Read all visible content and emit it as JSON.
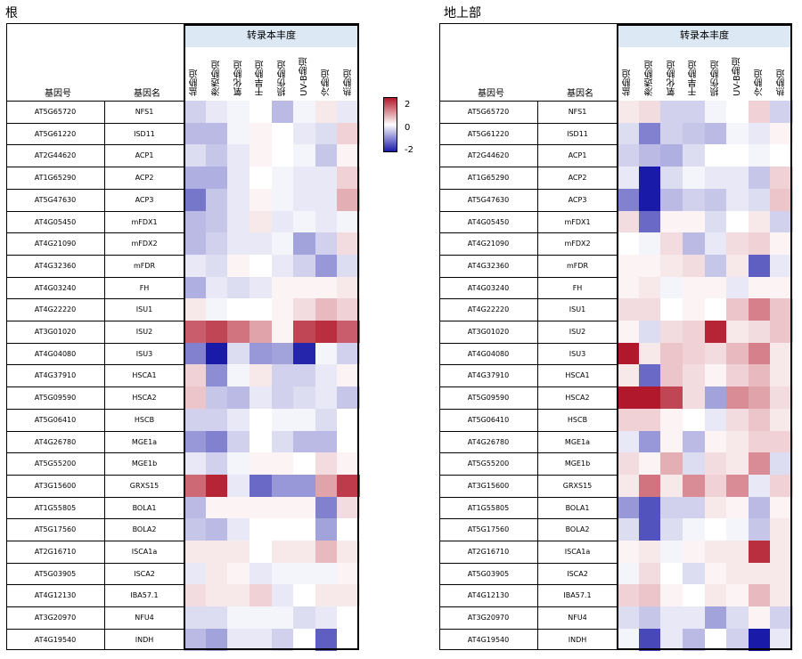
{
  "panels": [
    {
      "title": "根"
    },
    {
      "title": "地上部"
    }
  ],
  "header": {
    "group_label": "转录本丰度",
    "gene_id_label": "基因号",
    "gene_name_label": "基因名"
  },
  "conditions": [
    "盐胁迫",
    "渗透胁迫",
    "氧化胁迫",
    "干旱胁迫",
    "损伤胁迫",
    "UV-B胁迫",
    "冷胁迫",
    "热胁迫"
  ],
  "legend": {
    "max": "2",
    "mid": "0",
    "min": "-2"
  },
  "colors": {
    "high": "#b2182b",
    "mid": "#ffffff",
    "low": "#1a1aa8"
  },
  "chart_data": [
    {
      "type": "heatmap",
      "title": "根",
      "rows": [
        {
          "id": "AT5G65720",
          "name": "NFS1",
          "values": [
            -0.4,
            -0.2,
            -0.1,
            0.0,
            -0.6,
            -0.1,
            0.2,
            -0.2
          ]
        },
        {
          "id": "AT5G61220",
          "name": "ISD11",
          "values": [
            -0.6,
            -0.6,
            -0.1,
            0.1,
            0.0,
            -0.2,
            -0.3,
            0.4
          ]
        },
        {
          "id": "AT2G44620",
          "name": "ACP1",
          "values": [
            -0.3,
            -0.5,
            -0.2,
            0.1,
            0.0,
            -0.1,
            -0.5,
            0.1
          ]
        },
        {
          "id": "AT1G65290",
          "name": "ACP2",
          "values": [
            -0.7,
            -0.7,
            -0.2,
            0.0,
            -0.1,
            -0.2,
            -0.2,
            0.4
          ]
        },
        {
          "id": "AT5G47630",
          "name": "ACP3",
          "values": [
            -1.2,
            -0.5,
            -0.2,
            0.1,
            -0.1,
            -0.2,
            -0.2,
            0.7
          ]
        },
        {
          "id": "AT4G05450",
          "name": "mFDX1",
          "values": [
            -0.6,
            -0.5,
            -0.2,
            0.2,
            -0.2,
            -0.1,
            -0.2,
            -0.1
          ]
        },
        {
          "id": "AT4G21090",
          "name": "mFDX2",
          "values": [
            -0.6,
            -0.4,
            -0.2,
            -0.2,
            -0.1,
            -0.8,
            -0.4,
            0.3
          ]
        },
        {
          "id": "AT4G32360",
          "name": "mFDR",
          "values": [
            -0.2,
            -0.3,
            0.1,
            0.0,
            -0.2,
            -0.4,
            -0.9,
            -0.3
          ]
        },
        {
          "id": "AT4G03240",
          "name": "FH",
          "values": [
            -0.7,
            -0.2,
            -0.3,
            -0.2,
            0.1,
            0.1,
            0.1,
            0.2
          ]
        },
        {
          "id": "AT4G22220",
          "name": "ISU1",
          "values": [
            0.2,
            -0.1,
            0.0,
            0.0,
            0.1,
            0.3,
            0.6,
            0.4
          ]
        },
        {
          "id": "AT3G01020",
          "name": "ISU2",
          "values": [
            1.4,
            1.6,
            1.2,
            0.8,
            0.1,
            1.6,
            1.8,
            1.4
          ]
        },
        {
          "id": "AT4G04080",
          "name": "ISU3",
          "values": [
            -1.1,
            -2.0,
            -0.3,
            -0.9,
            -0.8,
            -1.9,
            -0.1,
            -0.4
          ]
        },
        {
          "id": "AT4G37910",
          "name": "HSCA1",
          "values": [
            0.4,
            -1.0,
            -0.1,
            0.2,
            -0.4,
            -0.4,
            -0.2,
            0.1
          ]
        },
        {
          "id": "AT5G09590",
          "name": "HSCA2",
          "values": [
            0.5,
            -0.5,
            -0.6,
            -0.2,
            -0.4,
            -0.3,
            -0.2,
            -0.5
          ]
        },
        {
          "id": "AT5G06410",
          "name": "HSCB",
          "values": [
            -0.4,
            -0.4,
            -0.2,
            0.0,
            -0.1,
            -0.1,
            -0.3,
            0.0
          ]
        },
        {
          "id": "AT4G26780",
          "name": "MGE1a",
          "values": [
            -0.9,
            -1.1,
            -0.4,
            0.0,
            -0.3,
            -0.6,
            -0.6,
            0.0
          ]
        },
        {
          "id": "AT5G55200",
          "name": "MGE1b",
          "values": [
            -0.2,
            -0.4,
            -0.1,
            0.1,
            0.1,
            0.0,
            0.3,
            0.1
          ]
        },
        {
          "id": "AT3G15600",
          "name": "GRXS15",
          "values": [
            1.3,
            1.9,
            -0.2,
            -1.3,
            -0.9,
            -0.9,
            0.8,
            1.7
          ]
        },
        {
          "id": "AT1G55805",
          "name": "BOLA1",
          "values": [
            -0.6,
            0.1,
            0.1,
            0.1,
            0.1,
            0.1,
            -1.1,
            0.3
          ]
        },
        {
          "id": "AT5G17560",
          "name": "BOLA2",
          "values": [
            -0.5,
            -0.6,
            -0.2,
            0.0,
            0.0,
            0.0,
            -0.8,
            0.0
          ]
        },
        {
          "id": "AT2G16710",
          "name": "ISCA1a",
          "values": [
            0.2,
            0.2,
            0.2,
            0.0,
            0.2,
            0.2,
            0.6,
            0.2
          ]
        },
        {
          "id": "AT5G03905",
          "name": "ISCA2",
          "values": [
            -0.2,
            0.2,
            0.1,
            -0.2,
            -0.1,
            -0.1,
            -0.1,
            0.1
          ]
        },
        {
          "id": "AT4G12130",
          "name": "IBA57.1",
          "values": [
            0.3,
            0.2,
            0.2,
            0.4,
            -0.2,
            0.0,
            0.2,
            0.2
          ]
        },
        {
          "id": "AT3G20970",
          "name": "NFU4",
          "values": [
            -0.3,
            -0.3,
            -0.1,
            -0.1,
            -0.1,
            -0.3,
            -0.2,
            0.0
          ]
        },
        {
          "id": "AT4G19540",
          "name": "INDH",
          "values": [
            -0.6,
            -0.8,
            -0.2,
            -0.2,
            -0.4,
            0.0,
            -1.4,
            0.0
          ]
        }
      ]
    },
    {
      "type": "heatmap",
      "title": "地上部",
      "rows": [
        {
          "id": "AT5G65720",
          "name": "NFS1",
          "values": [
            0.2,
            0.3,
            -0.4,
            -0.4,
            -0.1,
            0.0,
            0.4,
            -0.4
          ]
        },
        {
          "id": "AT5G61220",
          "name": "ISD11",
          "values": [
            -0.3,
            -1.1,
            -0.4,
            -0.5,
            -0.6,
            -0.1,
            -0.2,
            0.1
          ]
        },
        {
          "id": "AT2G44620",
          "name": "ACP1",
          "values": [
            -0.4,
            -0.6,
            -0.7,
            -0.3,
            0.0,
            0.0,
            -0.1,
            0.0
          ]
        },
        {
          "id": "AT1G65290",
          "name": "ACP2",
          "values": [
            -0.2,
            -2.0,
            -0.3,
            -0.1,
            -0.2,
            -0.2,
            -0.5,
            0.4
          ]
        },
        {
          "id": "AT5G47630",
          "name": "ACP3",
          "values": [
            -1.1,
            -2.0,
            -0.6,
            -0.4,
            -0.5,
            -0.2,
            -0.3,
            0.5
          ]
        },
        {
          "id": "AT4G05450",
          "name": "mFDX1",
          "values": [
            0.3,
            -1.3,
            0.1,
            0.1,
            -0.3,
            0.0,
            0.2,
            -0.4
          ]
        },
        {
          "id": "AT4G21090",
          "name": "mFDX2",
          "values": [
            0.0,
            -0.1,
            0.3,
            -0.6,
            -0.2,
            0.3,
            0.4,
            0.1
          ]
        },
        {
          "id": "AT4G32360",
          "name": "mFDR",
          "values": [
            0.1,
            0.1,
            0.2,
            0.3,
            -0.5,
            0.2,
            -1.4,
            -0.2
          ]
        },
        {
          "id": "AT4G03240",
          "name": "FH",
          "values": [
            0.1,
            0.2,
            -0.1,
            0.1,
            0.1,
            -0.2,
            0.1,
            0.1
          ]
        },
        {
          "id": "AT4G22220",
          "name": "ISU1",
          "values": [
            0.3,
            0.3,
            0.0,
            0.1,
            0.0,
            0.5,
            1.1,
            0.5
          ]
        },
        {
          "id": "AT3G01020",
          "name": "ISU2",
          "values": [
            0.1,
            -0.3,
            0.3,
            0.4,
            1.9,
            0.2,
            0.3,
            0.5
          ]
        },
        {
          "id": "AT4G04080",
          "name": "ISU3",
          "values": [
            2.0,
            0.2,
            0.5,
            0.4,
            0.3,
            0.6,
            1.1,
            0.2
          ]
        },
        {
          "id": "AT4G37910",
          "name": "HSCA1",
          "values": [
            0.2,
            -1.3,
            0.5,
            0.3,
            0.1,
            0.4,
            0.6,
            0.2
          ]
        },
        {
          "id": "AT5G09590",
          "name": "HSCA2",
          "values": [
            2.0,
            2.0,
            1.6,
            0.3,
            -0.8,
            1.0,
            0.8,
            0.3
          ]
        },
        {
          "id": "AT5G06410",
          "name": "HSCB",
          "values": [
            0.4,
            0.4,
            0.1,
            0.0,
            -0.2,
            0.3,
            0.5,
            0.2
          ]
        },
        {
          "id": "AT4G26780",
          "name": "MGE1a",
          "values": [
            -0.2,
            -0.9,
            0.1,
            -0.6,
            0.1,
            0.2,
            0.4,
            0.4
          ]
        },
        {
          "id": "AT5G55200",
          "name": "MGE1b",
          "values": [
            0.3,
            0.1,
            0.7,
            -0.3,
            0.3,
            0.2,
            1.0,
            -0.3
          ]
        },
        {
          "id": "AT3G15600",
          "name": "GRXS15",
          "values": [
            0.2,
            1.2,
            0.2,
            1.0,
            0.4,
            1.0,
            -0.2,
            0.4
          ]
        },
        {
          "id": "AT1G55805",
          "name": "BOLA1",
          "values": [
            -0.9,
            -1.5,
            -0.4,
            -0.4,
            0.2,
            0.1,
            -0.6,
            0.1
          ]
        },
        {
          "id": "AT5G17560",
          "name": "BOLA2",
          "values": [
            -0.3,
            -1.5,
            -0.3,
            -0.1,
            0.0,
            -0.1,
            -0.5,
            0.2
          ]
        },
        {
          "id": "AT2G16710",
          "name": "ISCA1a",
          "values": [
            0.1,
            0.2,
            -0.1,
            0.1,
            0.2,
            0.2,
            1.8,
            0.2
          ]
        },
        {
          "id": "AT5G03905",
          "name": "ISCA2",
          "values": [
            -0.1,
            0.3,
            0.0,
            -0.3,
            0.1,
            0.2,
            0.2,
            0.2
          ]
        },
        {
          "id": "AT4G12130",
          "name": "IBA57.1",
          "values": [
            0.4,
            0.5,
            0.1,
            0.0,
            0.2,
            0.1,
            0.6,
            0.2
          ]
        },
        {
          "id": "AT3G20970",
          "name": "NFU4",
          "values": [
            -0.3,
            -0.5,
            -0.2,
            -0.2,
            -0.8,
            -0.3,
            0.1,
            -0.4
          ]
        },
        {
          "id": "AT4G19540",
          "name": "INDH",
          "values": [
            -0.1,
            -1.6,
            -0.2,
            -0.6,
            0.0,
            -0.4,
            -2.0,
            -0.2
          ]
        }
      ]
    }
  ]
}
